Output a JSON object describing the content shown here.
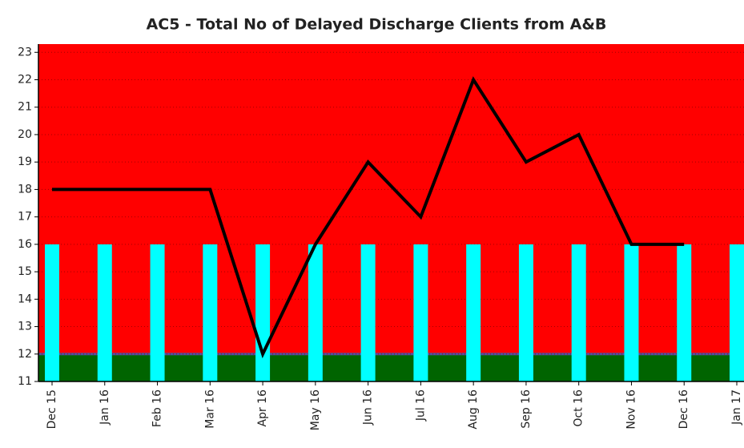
{
  "chart_data": {
    "type": "line",
    "title": "AC5 - Total No of Delayed Discharge Clients from A&B",
    "categories": [
      "Dec 15",
      "Jan 16",
      "Feb 16",
      "Mar 16",
      "Apr 16",
      "May 16",
      "Jun 16",
      "Jul 16",
      "Aug 16",
      "Sep 16",
      "Oct 16",
      "Nov 16",
      "Dec 16",
      "Jan 17"
    ],
    "series": [
      {
        "type": "bar",
        "color": "#00ffff",
        "values": [
          16,
          16,
          16,
          16,
          16,
          16,
          16,
          16,
          16,
          16,
          16,
          16,
          16,
          16
        ]
      },
      {
        "type": "line",
        "color": "#000000",
        "values": [
          18,
          18,
          18,
          18,
          12,
          16,
          19,
          17,
          22,
          19,
          20,
          16,
          16,
          null
        ]
      }
    ],
    "bands": [
      {
        "from": 11,
        "to": 12,
        "color": "#006400"
      },
      {
        "from": 12,
        "to": 23.3,
        "color": "#ff0000"
      }
    ],
    "ylim": [
      11,
      23.3
    ],
    "yticks": [
      11,
      12,
      13,
      14,
      15,
      16,
      17,
      18,
      19,
      20,
      21,
      22,
      23
    ],
    "grid": true
  }
}
